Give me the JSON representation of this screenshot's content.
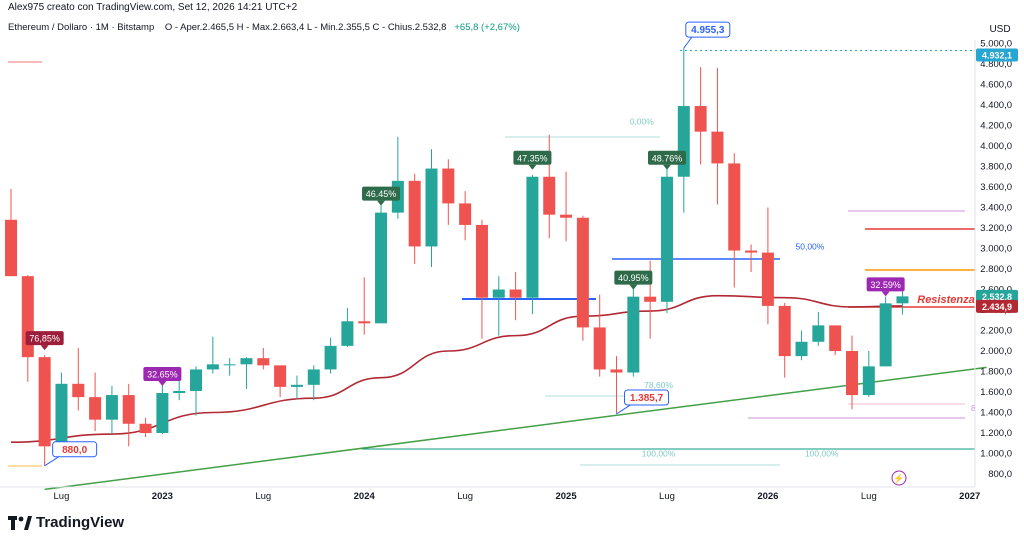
{
  "header": {
    "attribution": "Alex975 creato con TradingView.com, Set 12, 2026 14:21 UTC+2",
    "legend_symbol": "Ethereum / Dollaro · 1M · Bitstamp",
    "legend_ohlc": "O - Aper.2.465,5  H - Max.2.663,4  L - Min.2.355,5  C - Chius.2.532,8",
    "legend_change": "+65,8 (+2,67%)"
  },
  "brand": "TradingView",
  "colors": {
    "up": "#26a69a",
    "down": "#ef5350",
    "ma": "#b22833",
    "trend": "#43a047",
    "blue": "#2962ff",
    "res": "#e53935",
    "orange": "#ff9800",
    "teal": "#089981"
  },
  "chart_data": {
    "type": "candlestick",
    "title": "Ethereum / Dollaro",
    "interval": "1M",
    "exchange": "Bitstamp",
    "currency_label": "USD",
    "y_ticks": [
      "800,0",
      "1.000,0",
      "1.200,0",
      "1.400,0",
      "1.600,0",
      "1.800,0",
      "2.000,0",
      "2.200,0",
      "2.400,0",
      "2.600,0",
      "2.800,0",
      "3.000,0",
      "3.200,0",
      "3.400,0",
      "3.600,0",
      "3.800,0",
      "4.000,0",
      "4.200,0",
      "4.400,0",
      "4.600,0",
      "4.800,0",
      "5.000,0"
    ],
    "x_ticks": [
      "Lug",
      "2023",
      "Lug",
      "2024",
      "Lug",
      "2025",
      "Lug",
      "2026",
      "Lug",
      "2027"
    ],
    "candles": [
      {
        "m": "2022-04",
        "o": 3280,
        "h": 3580,
        "l": 2750,
        "c": 2730
      },
      {
        "m": "2022-05",
        "o": 2730,
        "h": 2740,
        "l": 1700,
        "c": 1940
      },
      {
        "m": "2022-06",
        "o": 1940,
        "h": 1960,
        "l": 880,
        "c": 1070
      },
      {
        "m": "2022-07",
        "o": 1070,
        "h": 1790,
        "l": 1000,
        "c": 1680
      },
      {
        "m": "2022-08",
        "o": 1680,
        "h": 2030,
        "l": 1420,
        "c": 1550
      },
      {
        "m": "2022-09",
        "o": 1550,
        "h": 1790,
        "l": 1220,
        "c": 1330
      },
      {
        "m": "2022-10",
        "o": 1330,
        "h": 1660,
        "l": 1190,
        "c": 1570
      },
      {
        "m": "2022-11",
        "o": 1570,
        "h": 1680,
        "l": 1070,
        "c": 1290
      },
      {
        "m": "2022-12",
        "o": 1290,
        "h": 1350,
        "l": 1160,
        "c": 1200
      },
      {
        "m": "2023-01",
        "o": 1200,
        "h": 1680,
        "l": 1190,
        "c": 1590
      },
      {
        "m": "2023-02",
        "o": 1590,
        "h": 1740,
        "l": 1520,
        "c": 1610
      },
      {
        "m": "2023-03",
        "o": 1610,
        "h": 1850,
        "l": 1370,
        "c": 1820
      },
      {
        "m": "2023-04",
        "o": 1820,
        "h": 2140,
        "l": 1780,
        "c": 1870
      },
      {
        "m": "2023-05",
        "o": 1870,
        "h": 1930,
        "l": 1760,
        "c": 1870
      },
      {
        "m": "2023-06",
        "o": 1870,
        "h": 1940,
        "l": 1630,
        "c": 1930
      },
      {
        "m": "2023-07",
        "o": 1930,
        "h": 2030,
        "l": 1820,
        "c": 1860
      },
      {
        "m": "2023-08",
        "o": 1860,
        "h": 1860,
        "l": 1550,
        "c": 1650
      },
      {
        "m": "2023-09",
        "o": 1650,
        "h": 1760,
        "l": 1530,
        "c": 1670
      },
      {
        "m": "2023-10",
        "o": 1670,
        "h": 1860,
        "l": 1520,
        "c": 1820
      },
      {
        "m": "2023-11",
        "o": 1820,
        "h": 2130,
        "l": 1780,
        "c": 2050
      },
      {
        "m": "2023-12",
        "o": 2050,
        "h": 2420,
        "l": 2040,
        "c": 2290
      },
      {
        "m": "2024-01",
        "o": 2290,
        "h": 2720,
        "l": 2160,
        "c": 2270
      },
      {
        "m": "2024-02",
        "o": 2270,
        "h": 3500,
        "l": 2270,
        "c": 3350
      },
      {
        "m": "2024-03",
        "o": 3350,
        "h": 4090,
        "l": 3290,
        "c": 3660
      },
      {
        "m": "2024-04",
        "o": 3660,
        "h": 3730,
        "l": 2850,
        "c": 3020
      },
      {
        "m": "2024-05",
        "o": 3020,
        "h": 3970,
        "l": 2820,
        "c": 3780
      },
      {
        "m": "2024-06",
        "o": 3780,
        "h": 3870,
        "l": 3230,
        "c": 3440
      },
      {
        "m": "2024-07",
        "o": 3440,
        "h": 3560,
        "l": 3080,
        "c": 3230
      },
      {
        "m": "2024-08",
        "o": 3230,
        "h": 3280,
        "l": 2120,
        "c": 2520
      },
      {
        "m": "2024-09",
        "o": 2520,
        "h": 2730,
        "l": 2150,
        "c": 2600
      },
      {
        "m": "2024-10",
        "o": 2600,
        "h": 2770,
        "l": 2300,
        "c": 2520
      },
      {
        "m": "2024-11",
        "o": 2520,
        "h": 3720,
        "l": 2360,
        "c": 3700
      },
      {
        "m": "2024-12",
        "o": 3700,
        "h": 4110,
        "l": 3100,
        "c": 3330
      },
      {
        "m": "2025-01",
        "o": 3330,
        "h": 3750,
        "l": 3070,
        "c": 3300
      },
      {
        "m": "2025-02",
        "o": 3300,
        "h": 3320,
        "l": 2100,
        "c": 2230
      },
      {
        "m": "2025-03",
        "o": 2230,
        "h": 2550,
        "l": 1750,
        "c": 1820
      },
      {
        "m": "2025-04",
        "o": 1820,
        "h": 1950,
        "l": 1390,
        "c": 1790
      },
      {
        "m": "2025-05",
        "o": 1790,
        "h": 2740,
        "l": 1750,
        "c": 2530
      },
      {
        "m": "2025-06",
        "o": 2530,
        "h": 2880,
        "l": 2120,
        "c": 2480
      },
      {
        "m": "2025-07",
        "o": 2480,
        "h": 3940,
        "l": 2370,
        "c": 3700
      },
      {
        "m": "2025-08",
        "o": 3700,
        "h": 4955,
        "l": 3350,
        "c": 4390
      },
      {
        "m": "2025-09",
        "o": 4390,
        "h": 4770,
        "l": 3820,
        "c": 4140
      },
      {
        "m": "2025-10",
        "o": 4140,
        "h": 4760,
        "l": 3430,
        "c": 3830
      },
      {
        "m": "2025-11",
        "o": 3830,
        "h": 3930,
        "l": 2620,
        "c": 2980
      },
      {
        "m": "2025-12",
        "o": 2980,
        "h": 3040,
        "l": 2770,
        "c": 2960
      },
      {
        "m": "2026-01",
        "o": 2960,
        "h": 3400,
        "l": 2260,
        "c": 2440
      },
      {
        "m": "2026-02",
        "o": 2440,
        "h": 2470,
        "l": 1740,
        "c": 1950
      },
      {
        "m": "2026-03",
        "o": 1950,
        "h": 2200,
        "l": 1910,
        "c": 2090
      },
      {
        "m": "2026-04",
        "o": 2090,
        "h": 2380,
        "l": 2050,
        "c": 2250
      },
      {
        "m": "2026-05",
        "o": 2250,
        "h": 2250,
        "l": 1960,
        "c": 2000
      },
      {
        "m": "2026-06",
        "o": 2000,
        "h": 2150,
        "l": 1430,
        "c": 1570
      },
      {
        "m": "2026-07",
        "o": 1570,
        "h": 2000,
        "l": 1550,
        "c": 1850
      },
      {
        "m": "2026-08",
        "o": 1850,
        "h": 2530,
        "l": 1850,
        "c": 2465
      },
      {
        "m": "2026-09",
        "o": 2465,
        "h": 2663,
        "l": 2355,
        "c": 2533
      }
    ],
    "ma_points": [
      [
        0,
        1110
      ],
      [
        6,
        1190
      ],
      [
        12,
        1400
      ],
      [
        18,
        1540
      ],
      [
        22,
        1740
      ],
      [
        26,
        2000
      ],
      [
        30,
        2150
      ],
      [
        34,
        2340
      ],
      [
        38,
        2390
      ],
      [
        42,
        2540
      ],
      [
        46,
        2520
      ],
      [
        50,
        2430
      ],
      [
        53,
        2440
      ]
    ],
    "trendline": {
      "from": [
        2,
        650
      ],
      "to": [
        58,
        1840
      ]
    },
    "percent_labels": [
      {
        "i": 2,
        "text": "76,85%",
        "kind": "down"
      },
      {
        "i": 9,
        "text": "32.65%",
        "kind": "purple"
      },
      {
        "i": 22,
        "text": "46.45%",
        "kind": "up"
      },
      {
        "i": 31,
        "text": "47.35%",
        "kind": "up"
      },
      {
        "i": 37,
        "text": "40.95%",
        "kind": "up"
      },
      {
        "i": 39,
        "text": "48.76%",
        "kind": "up"
      },
      {
        "i": 52,
        "text": "32.59%",
        "kind": "purple"
      }
    ],
    "price_callouts": [
      {
        "i": 2,
        "price": 880,
        "text": "880,0",
        "kind": "low"
      },
      {
        "i": 36,
        "price": 1385.7,
        "text": "1.385,7",
        "kind": "low"
      },
      {
        "i": 40,
        "price": 4955,
        "text": "4.955,3",
        "kind": "high"
      }
    ],
    "fib_texts": [
      {
        "i": 37.5,
        "price": 4180,
        "text": "0,00%"
      },
      {
        "i": 38.5,
        "price": 1610,
        "text": "78,60%"
      },
      {
        "i": 38.5,
        "price": 940,
        "text": "100,00%"
      },
      {
        "i": 47.5,
        "price": 2960,
        "text": "50,00%"
      },
      {
        "i": 48.2,
        "price": 940,
        "text": "100,00%"
      }
    ],
    "resistance_label": "Resistenza",
    "price_badges": [
      {
        "price": 4932,
        "text": "4.932,1",
        "kind": "dotted"
      },
      {
        "price": 2532.8,
        "text": "2.532,8",
        "kind": "last"
      },
      {
        "price": 2434.9,
        "text": "2.434,9",
        "kind": "ma"
      }
    ],
    "right_edge_text": "8"
  }
}
